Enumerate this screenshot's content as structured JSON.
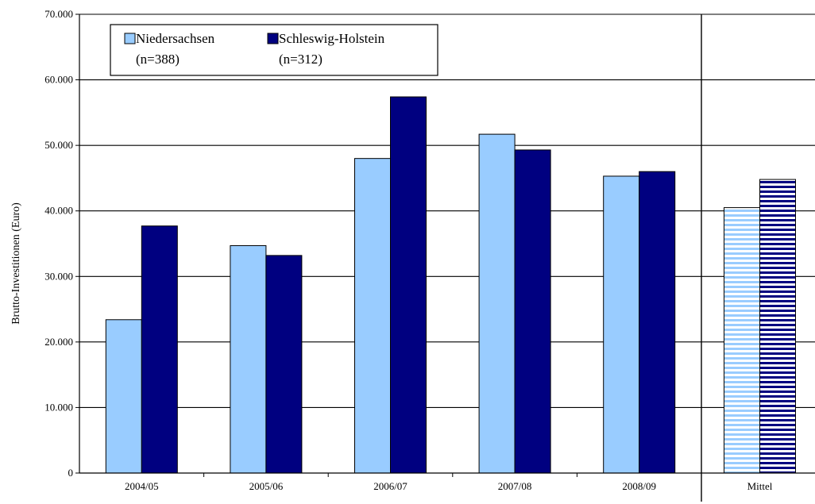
{
  "chart_data": {
    "type": "bar",
    "categories": [
      "2004/05",
      "2005/06",
      "2006/07",
      "2007/08",
      "2008/09",
      "Mittel"
    ],
    "series": [
      {
        "name": "Niedersachsen",
        "sample": "(n=388)",
        "color": "#99ccff",
        "values": [
          23400,
          34700,
          48000,
          51700,
          45300,
          40500
        ]
      },
      {
        "name": "Schleswig-Holstein",
        "sample": "(n=312)",
        "color": "#000080",
        "values": [
          37700,
          33200,
          57400,
          49300,
          46000,
          44800
        ]
      }
    ],
    "ylabel": "Brutto-Investitionen (Euro)",
    "ylim": [
      0,
      70000
    ],
    "yticks": [
      "0",
      "10.000",
      "20.000",
      "30.000",
      "40.000",
      "50.000",
      "60.000",
      "70.000"
    ],
    "grid": true,
    "legend_position": "top-left",
    "mean_category_pattern": "horizontal-stripes"
  }
}
